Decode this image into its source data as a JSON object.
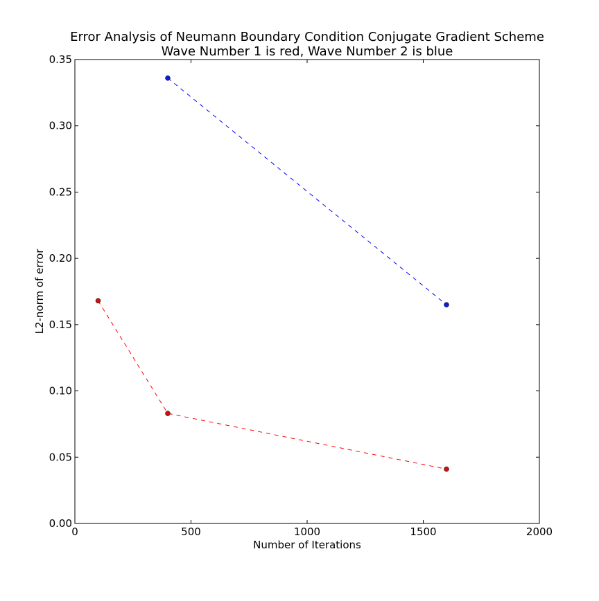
{
  "chart_data": {
    "type": "line",
    "title": "Error Analysis of Neumann Boundary Condition Conjugate Gradient Scheme",
    "subtitle": "Wave Number 1 is red, Wave Number 2 is blue",
    "xlabel": "Number of Iterations",
    "ylabel": "L2-norm of error",
    "xlim": [
      0,
      2000
    ],
    "ylim": [
      0,
      0.35
    ],
    "xticks": [
      0,
      500,
      1000,
      1500,
      2000
    ],
    "xtick_labels": [
      "0",
      "500",
      "1000",
      "1500",
      "2000"
    ],
    "yticks": [
      0,
      0.05,
      0.1,
      0.15,
      0.2,
      0.25,
      0.3,
      0.35
    ],
    "ytick_labels": [
      "0.00",
      "0.05",
      "0.10",
      "0.15",
      "0.20",
      "0.25",
      "0.30",
      "0.35"
    ],
    "grid": false,
    "series": [
      {
        "color": "#ff0000",
        "marker_color": "#cc1111",
        "line_style": "dashed",
        "x": [
          100,
          400,
          1600
        ],
        "y": [
          0.168,
          0.083,
          0.041
        ]
      },
      {
        "color": "#0000ff",
        "marker_color": "#0a1fd0",
        "line_style": "dashed",
        "x": [
          400,
          1600
        ],
        "y": [
          0.336,
          0.165
        ]
      }
    ]
  }
}
